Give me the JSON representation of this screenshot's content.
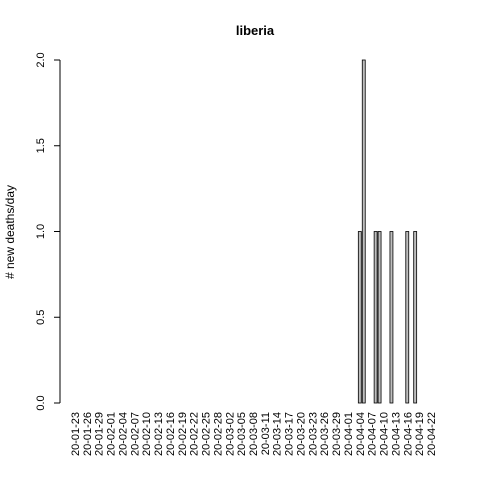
{
  "chart_data": {
    "type": "bar",
    "title": "liberia",
    "xlabel": "",
    "ylabel": "# new deaths/day",
    "ylim": [
      0,
      2
    ],
    "y_ticks": [
      "0.0",
      "0.5",
      "1.0",
      "1.5",
      "2.0"
    ],
    "y_tick_values": [
      0,
      0.5,
      1,
      1.5,
      2
    ],
    "x_tick_labels": [
      "20-01-23",
      "20-01-26",
      "20-01-29",
      "20-02-01",
      "20-02-04",
      "20-02-07",
      "20-02-10",
      "20-02-13",
      "20-02-16",
      "20-02-19",
      "20-02-22",
      "20-02-25",
      "20-02-28",
      "20-03-02",
      "20-03-05",
      "20-03-08",
      "20-03-11",
      "20-03-14",
      "20-03-17",
      "20-03-20",
      "20-03-23",
      "20-03-26",
      "20-03-29",
      "20-04-01",
      "20-04-04",
      "20-04-07",
      "20-04-10",
      "20-04-13",
      "20-04-16",
      "20-04-19",
      "20-04-22"
    ],
    "categories": [
      "20-01-23",
      "20-01-24",
      "20-01-25",
      "20-01-26",
      "20-01-27",
      "20-01-28",
      "20-01-29",
      "20-01-30",
      "20-01-31",
      "20-02-01",
      "20-02-02",
      "20-02-03",
      "20-02-04",
      "20-02-05",
      "20-02-06",
      "20-02-07",
      "20-02-08",
      "20-02-09",
      "20-02-10",
      "20-02-11",
      "20-02-12",
      "20-02-13",
      "20-02-14",
      "20-02-15",
      "20-02-16",
      "20-02-17",
      "20-02-18",
      "20-02-19",
      "20-02-20",
      "20-02-21",
      "20-02-22",
      "20-02-23",
      "20-02-24",
      "20-02-25",
      "20-02-26",
      "20-02-27",
      "20-02-28",
      "20-02-29",
      "20-03-01",
      "20-03-02",
      "20-03-03",
      "20-03-04",
      "20-03-05",
      "20-03-06",
      "20-03-07",
      "20-03-08",
      "20-03-09",
      "20-03-10",
      "20-03-11",
      "20-03-12",
      "20-03-13",
      "20-03-14",
      "20-03-15",
      "20-03-16",
      "20-03-17",
      "20-03-18",
      "20-03-19",
      "20-03-20",
      "20-03-21",
      "20-03-22",
      "20-03-23",
      "20-03-24",
      "20-03-25",
      "20-03-26",
      "20-03-27",
      "20-03-28",
      "20-03-29",
      "20-03-30",
      "20-03-31",
      "20-04-01",
      "20-04-02",
      "20-04-03",
      "20-04-04",
      "20-04-05",
      "20-04-06",
      "20-04-07",
      "20-04-08",
      "20-04-09",
      "20-04-10",
      "20-04-11",
      "20-04-12",
      "20-04-13",
      "20-04-14",
      "20-04-15",
      "20-04-16",
      "20-04-17",
      "20-04-18",
      "20-04-19",
      "20-04-20",
      "20-04-21",
      "20-04-22"
    ],
    "values": [
      0,
      0,
      0,
      0,
      0,
      0,
      0,
      0,
      0,
      0,
      0,
      0,
      0,
      0,
      0,
      0,
      0,
      0,
      0,
      0,
      0,
      0,
      0,
      0,
      0,
      0,
      0,
      0,
      0,
      0,
      0,
      0,
      0,
      0,
      0,
      0,
      0,
      0,
      0,
      0,
      0,
      0,
      0,
      0,
      0,
      0,
      0,
      0,
      0,
      0,
      0,
      0,
      0,
      0,
      0,
      0,
      0,
      0,
      0,
      0,
      0,
      0,
      0,
      0,
      0,
      0,
      0,
      0,
      0,
      0,
      0,
      0,
      1,
      2,
      0,
      0,
      1,
      1,
      0,
      0,
      1,
      0,
      0,
      0,
      1,
      0,
      1,
      0,
      0,
      0,
      0
    ],
    "grid": false,
    "legend": "none"
  }
}
